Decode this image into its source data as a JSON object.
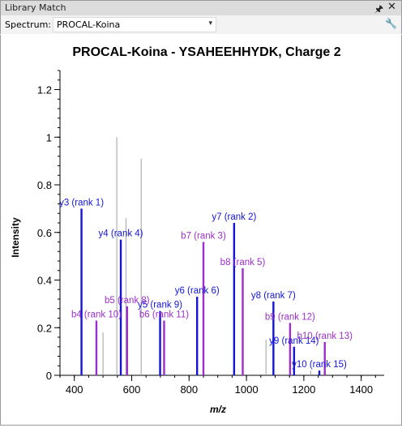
{
  "window": {
    "title": "Library Match",
    "pin_icon": "pin-icon",
    "close_icon": "close-icon"
  },
  "toolbar": {
    "spectrum_label": "Spectrum:",
    "spectrum_value": "PROCAL-Koina",
    "settings_icon": "wrench-icon"
  },
  "chart_data": {
    "type": "bar",
    "title": "PROCAL-Koina - YSAHEEHHYDK, Charge 2",
    "xlabel": "m/z",
    "ylabel": "Intensity",
    "xlim": [
      350,
      1480
    ],
    "ylim": [
      0,
      1.28
    ],
    "xticks": [
      400,
      600,
      800,
      1000,
      1200,
      1400
    ],
    "yticks": [
      0,
      0.2,
      0.4,
      0.6,
      0.8,
      1,
      1.2
    ],
    "colors": {
      "unmatched": "#a0a0a0",
      "y_ion": "#1414d2",
      "b_ion": "#9b2fc9"
    },
    "series": [
      {
        "name": "unmatched",
        "points": [
          {
            "x": 500,
            "y": 0.18
          },
          {
            "x": 548,
            "y": 1.0
          },
          {
            "x": 580,
            "y": 0.66
          },
          {
            "x": 633,
            "y": 0.91
          },
          {
            "x": 1068,
            "y": 0.15
          },
          {
            "x": 1224,
            "y": 0.02
          },
          {
            "x": 1255,
            "y": 0.015
          }
        ]
      },
      {
        "name": "y",
        "points": [
          {
            "x": 425,
            "y": 0.7,
            "label": "y3 (rank 1)"
          },
          {
            "x": 562,
            "y": 0.57,
            "label": "y4 (rank 4)"
          },
          {
            "x": 699,
            "y": 0.27,
            "label": "y5 (rank 9)"
          },
          {
            "x": 828,
            "y": 0.33,
            "label": "y6 (rank 6)"
          },
          {
            "x": 957,
            "y": 0.64,
            "label": "y7 (rank 2)"
          },
          {
            "x": 1094,
            "y": 0.31,
            "label": "y8 (rank 7)"
          },
          {
            "x": 1166,
            "y": 0.12,
            "label": "y9 (rank 14)"
          },
          {
            "x": 1254,
            "y": 0.02,
            "label": "y10 (rank 15)"
          }
        ]
      },
      {
        "name": "b",
        "points": [
          {
            "x": 477,
            "y": 0.23,
            "label": "b4 (rank 10)"
          },
          {
            "x": 584,
            "y": 0.29,
            "label": "b5 (rank 8)"
          },
          {
            "x": 713,
            "y": 0.23,
            "label": "b6 (rank 11)"
          },
          {
            "x": 850,
            "y": 0.56,
            "label": "b7 (rank 3)"
          },
          {
            "x": 987,
            "y": 0.45,
            "label": "b8 (rank 5)"
          },
          {
            "x": 1152,
            "y": 0.22,
            "label": "b9 (rank 12)"
          },
          {
            "x": 1273,
            "y": 0.14,
            "label": "b10 (rank 13)"
          }
        ]
      }
    ]
  }
}
